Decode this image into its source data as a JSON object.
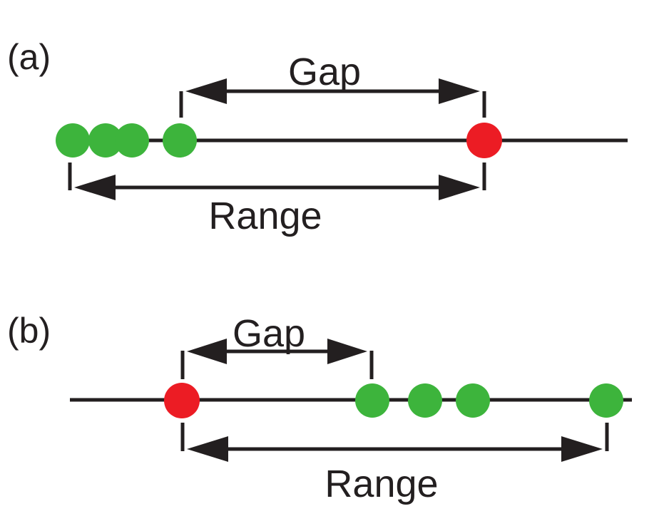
{
  "colors": {
    "line": "#231f20",
    "green_point": "#3db43c",
    "red_point": "#ec1c24",
    "background": "#ffffff"
  },
  "panel_a": {
    "label": "(a)",
    "gap_label": "Gap",
    "range_label": "Range"
  },
  "panel_b": {
    "label": "(b)",
    "gap_label": "Gap",
    "range_label": "Range"
  }
}
